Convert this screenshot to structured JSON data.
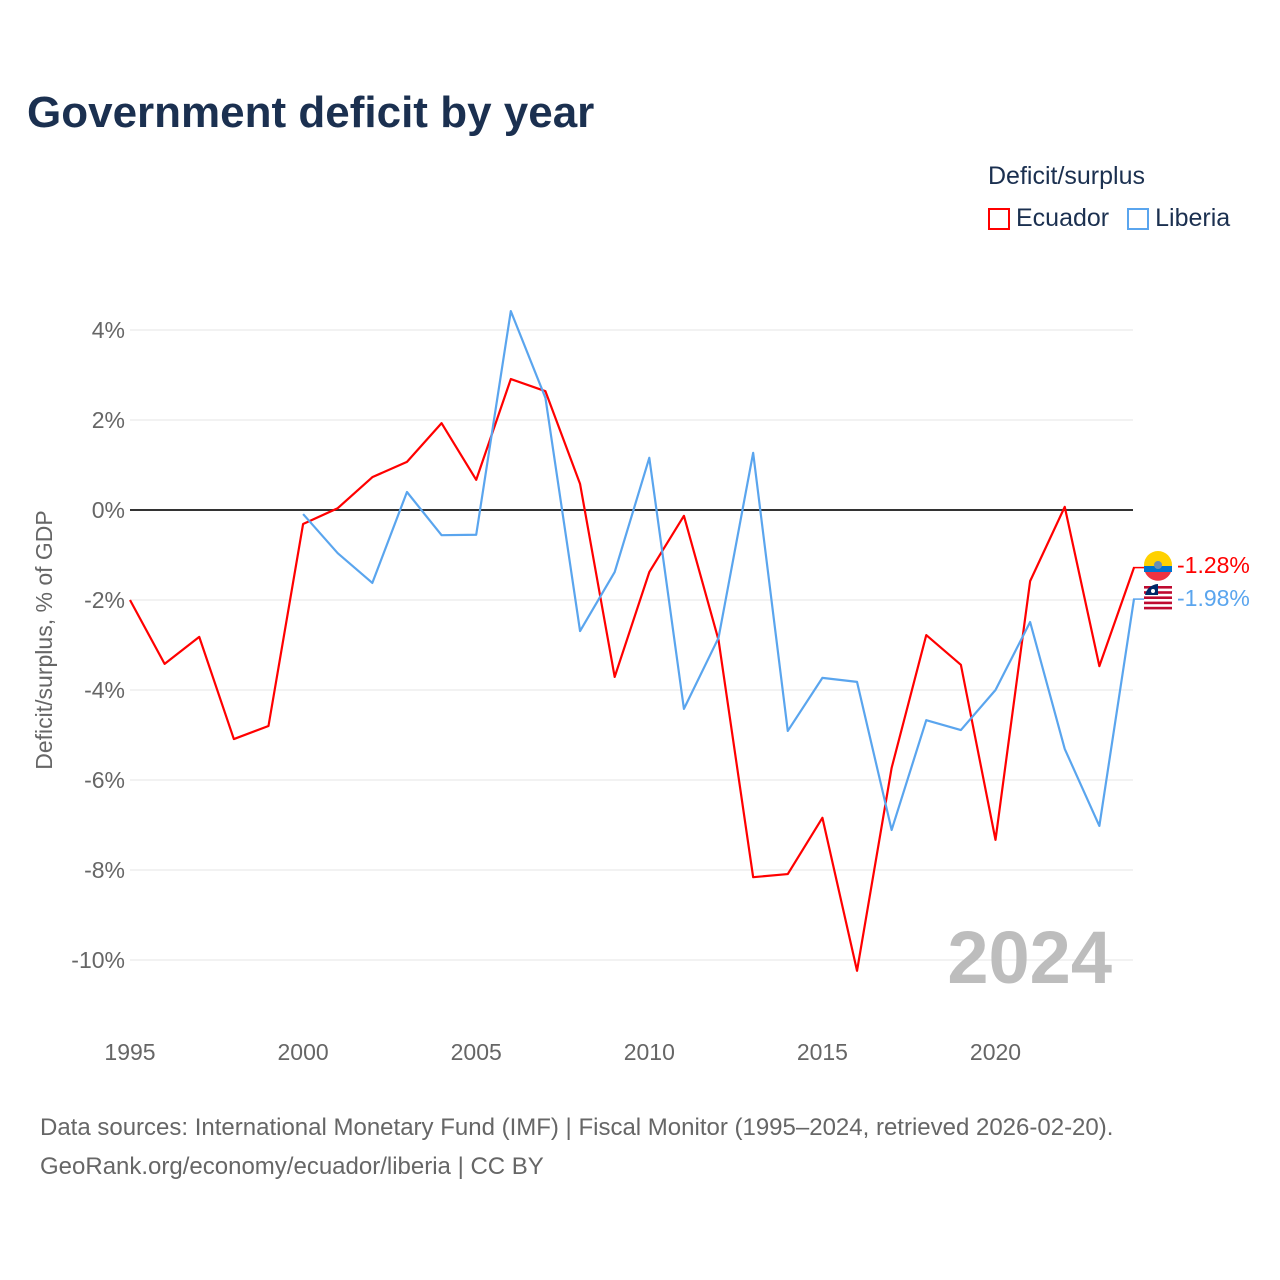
{
  "title": "Government deficit by year",
  "legend": {
    "title": "Deficit/surplus",
    "items": [
      {
        "name": "Ecuador",
        "color": "#ff0000"
      },
      {
        "name": "Liberia",
        "color": "#5aa5ee"
      }
    ]
  },
  "source": {
    "line1": "Data sources: International Monetary Fund (IMF) | Fiscal Monitor (1995–2024, retrieved 2026-02-20).",
    "line2": "GeoRank.org/economy/ecuador/liberia | CC BY"
  },
  "chart_data": {
    "type": "line",
    "title": "Government deficit by year",
    "ylabel": "Deficit/surplus, % of GDP",
    "xlabel": "",
    "xlim": [
      1995,
      2024
    ],
    "ylim": [
      -11,
      5
    ],
    "x_ticks": [
      1995,
      2000,
      2005,
      2010,
      2015,
      2020
    ],
    "x_tick_labels": [
      "1995",
      "2000",
      "2005",
      "2010",
      "2015",
      "2020"
    ],
    "y_ticks": [
      4,
      2,
      0,
      -2,
      -4,
      -6,
      -8,
      -10
    ],
    "y_tick_labels": [
      "4%",
      "2%",
      "0%",
      "-2%",
      "-4%",
      "-6%",
      "-8%",
      "-10%"
    ],
    "watermark_year": "2024",
    "series": [
      {
        "name": "Ecuador",
        "color": "#ff0000",
        "end_label": "-1.28%",
        "x": [
          1995,
          1996,
          1997,
          1998,
          1999,
          2000,
          2001,
          2002,
          2003,
          2004,
          2005,
          2006,
          2007,
          2008,
          2009,
          2010,
          2011,
          2012,
          2013,
          2014,
          2015,
          2016,
          2017,
          2018,
          2019,
          2020,
          2021,
          2022,
          2023,
          2024
        ],
        "values": [
          -2.0,
          -3.42,
          -2.82,
          -5.09,
          -4.8,
          -0.31,
          0.04,
          0.73,
          1.07,
          1.93,
          0.67,
          2.91,
          2.64,
          0.58,
          -3.71,
          -1.38,
          -0.13,
          -2.89,
          -8.16,
          -8.09,
          -6.84,
          -10.24,
          -5.73,
          -2.78,
          -3.44,
          -7.33,
          -1.58,
          0.07,
          -3.47,
          -1.28
        ]
      },
      {
        "name": "Liberia",
        "color": "#5aa5ee",
        "end_label": "-1.98%",
        "x": [
          2000,
          2001,
          2002,
          2003,
          2004,
          2005,
          2006,
          2007,
          2008,
          2009,
          2010,
          2011,
          2012,
          2013,
          2014,
          2015,
          2016,
          2017,
          2018,
          2019,
          2020,
          2021,
          2022,
          2023,
          2024
        ],
        "values": [
          -0.09,
          -0.96,
          -1.62,
          0.4,
          -0.56,
          -0.55,
          4.42,
          2.49,
          -2.69,
          -1.38,
          1.16,
          -4.42,
          -2.84,
          1.27,
          -4.91,
          -3.73,
          -3.82,
          -7.11,
          -4.67,
          -4.89,
          -4.0,
          -2.49,
          -5.31,
          -7.02,
          -1.98
        ]
      }
    ]
  }
}
